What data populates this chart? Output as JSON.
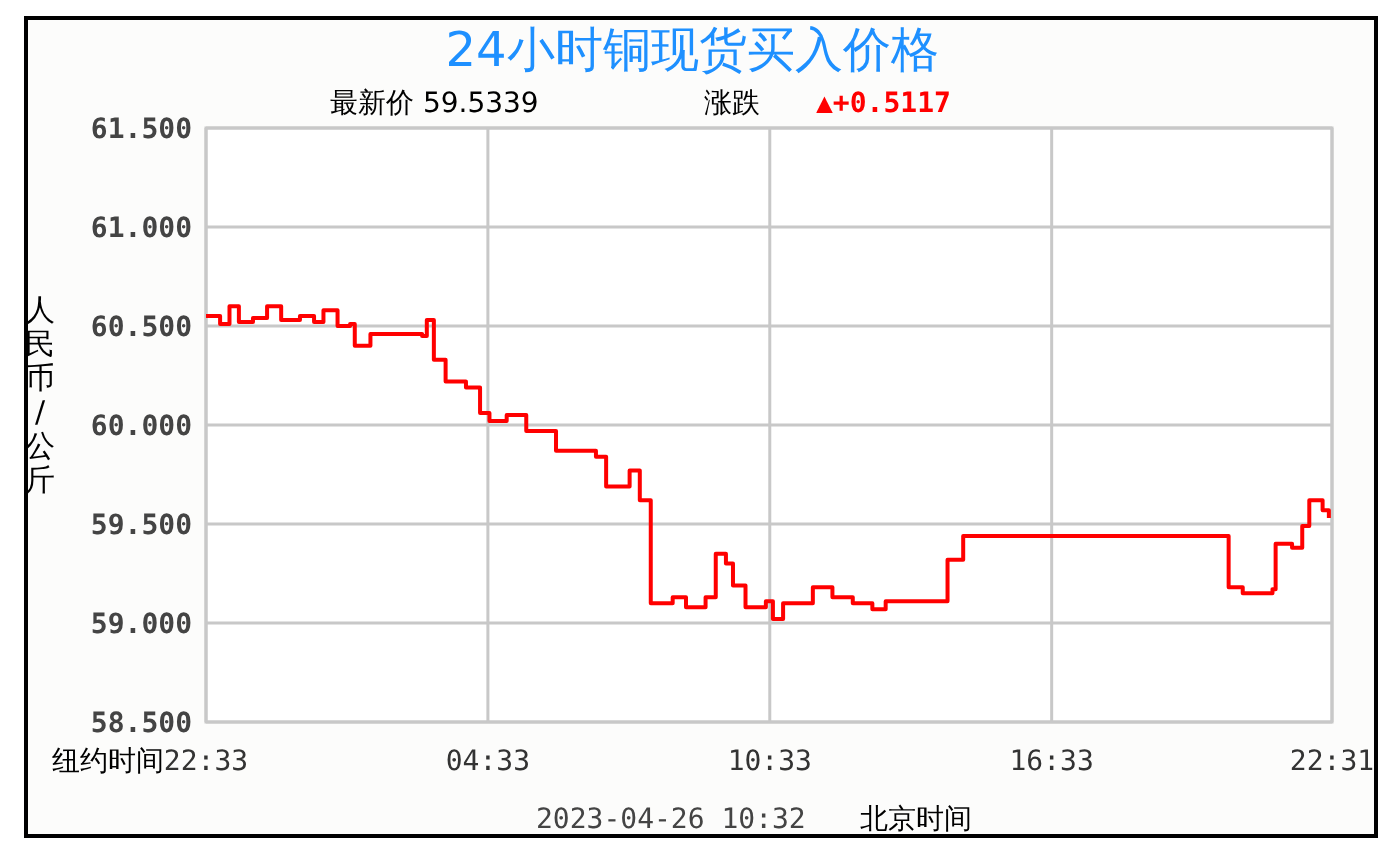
{
  "chart_data": {
    "type": "step",
    "title": "24小时铜现货买入价格",
    "xlabel": "纽约时间",
    "ylabel": "人民币/公斤",
    "annotations": [
      "最新价  59.5339",
      "涨跌",
      "▲+0.5117",
      "2023-04-26 10:32",
      "北京时间"
    ],
    "series": [
      {
        "color": "#ff0000",
        "x": [
          "2023-04-24T22:33",
          "2023-04-24T22:51",
          "2023-04-24T23:03",
          "2023-04-24T23:15",
          "2023-04-24T23:33",
          "2023-04-24T23:51",
          "2023-04-25T00:09",
          "2023-04-25T00:33",
          "2023-04-25T00:51",
          "2023-04-25T01:03",
          "2023-04-25T01:21",
          "2023-04-25T01:37",
          "2023-04-25T01:43",
          "2023-04-25T02:03",
          "2023-04-25T02:43",
          "2023-04-25T03:09",
          "2023-04-25T03:15",
          "2023-04-25T03:24",
          "2023-04-25T03:39",
          "2023-04-25T04:05",
          "2023-04-25T04:23",
          "2023-04-25T04:35",
          "2023-04-25T04:57",
          "2023-04-25T05:22",
          "2023-04-25T06:00",
          "2023-04-25T06:51",
          "2023-04-25T07:04",
          "2023-04-25T07:21",
          "2023-04-25T07:34",
          "2023-04-25T07:47",
          "2023-04-25T08:00",
          "2023-04-25T08:01",
          "2023-04-25T08:29",
          "2023-04-25T08:46",
          "2023-04-25T09:11",
          "2023-04-25T09:24",
          "2023-04-25T09:37",
          "2023-04-25T09:46",
          "2023-04-25T09:59",
          "2023-04-25T10:02",
          "2023-04-25T10:28",
          "2023-04-25T10:37",
          "2023-04-25T10:50",
          "2023-04-25T11:28",
          "2023-04-25T11:53",
          "2023-04-25T12:19",
          "2023-04-25T12:44",
          "2023-04-25T13:01",
          "2023-04-25T14:18",
          "2023-04-25T14:20",
          "2023-04-25T14:40",
          "2023-04-25T20:15",
          "2023-04-25T20:19",
          "2023-04-25T20:37",
          "2023-04-25T21:15",
          "2023-04-25T21:19",
          "2023-04-25T21:40",
          "2023-04-25T21:53",
          "2023-04-25T22:02",
          "2023-04-25T22:19",
          "2023-04-25T22:27"
        ],
        "values": [
          60.55,
          60.51,
          60.6,
          60.52,
          60.54,
          60.6,
          60.53,
          60.55,
          60.52,
          60.58,
          60.5,
          60.51,
          60.4,
          60.46,
          60.46,
          60.45,
          60.53,
          60.33,
          60.22,
          60.19,
          60.06,
          60.02,
          60.05,
          59.97,
          59.87,
          59.84,
          59.69,
          59.69,
          59.77,
          59.62,
          59.62,
          59.1,
          59.13,
          59.08,
          59.13,
          59.35,
          59.3,
          59.19,
          59.19,
          59.08,
          59.11,
          59.02,
          59.1,
          59.18,
          59.13,
          59.1,
          59.07,
          59.11,
          59.11,
          59.32,
          59.44,
          59.44,
          59.18,
          59.15,
          59.17,
          59.4,
          59.38,
          59.49,
          59.62,
          59.57,
          59.53
        ]
      }
    ],
    "xlim": [
      "2023-04-24T22:33",
      "2023-04-25T22:31"
    ],
    "xticks": [
      {
        "value": "2023-04-24T22:33",
        "label": "22:33"
      },
      {
        "value": "2023-04-25T04:33",
        "label": "04:33"
      },
      {
        "value": "2023-04-25T10:33",
        "label": "10:33"
      },
      {
        "value": "2023-04-25T16:33",
        "label": "16:33"
      },
      {
        "value": "2023-04-25T22:31",
        "label": "22:31"
      }
    ],
    "ylim": [
      58.5,
      61.5
    ],
    "yticks": [
      {
        "value": 58.5,
        "label": "58.500"
      },
      {
        "value": 59,
        "label": "59.000"
      },
      {
        "value": 59.5,
        "label": "59.500"
      },
      {
        "value": 60,
        "label": "60.000"
      },
      {
        "value": 60.5,
        "label": "60.500"
      },
      {
        "value": 61,
        "label": "61.000"
      },
      {
        "value": 61.5,
        "label": "61.500"
      }
    ],
    "grid": true
  }
}
